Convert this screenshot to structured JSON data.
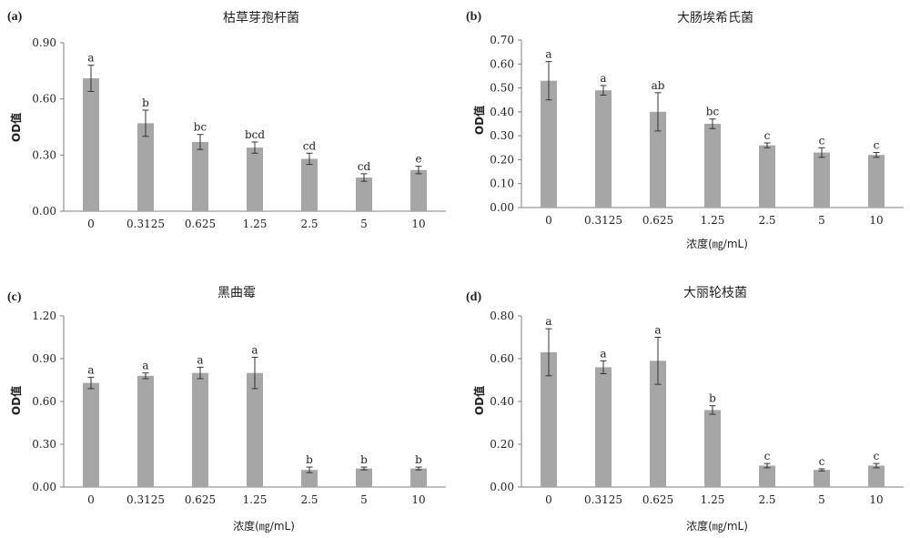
{
  "chart_data": [
    {
      "type": "bar",
      "panel": "(a)",
      "title": "枯草芽孢杆菌",
      "ylabel": "OD值",
      "xlabel": "",
      "categories": [
        "0",
        "0.3125",
        "0.625",
        "1.25",
        "2.5",
        "5",
        "10"
      ],
      "values": [
        0.71,
        0.47,
        0.37,
        0.34,
        0.28,
        0.18,
        0.22
      ],
      "errors": [
        0.07,
        0.07,
        0.04,
        0.03,
        0.03,
        0.02,
        0.02
      ],
      "labels": [
        "a",
        "b",
        "bc",
        "bcd",
        "cd",
        "cd",
        "e"
      ],
      "ylim": [
        0,
        0.9
      ],
      "yticks": [
        "0.00",
        "0.30",
        "0.60",
        "0.90"
      ],
      "bar_color": "#a6a6a6",
      "grid": false
    },
    {
      "type": "bar",
      "panel": "(b)",
      "title": "大肠埃希氏菌",
      "ylabel": "OD值",
      "xlabel": "浓度(㎎/mL)",
      "categories": [
        "0",
        "0.3125",
        "0.625",
        "1.25",
        "2.5",
        "5",
        "10"
      ],
      "values": [
        0.53,
        0.49,
        0.4,
        0.35,
        0.26,
        0.23,
        0.22
      ],
      "errors": [
        0.08,
        0.02,
        0.08,
        0.02,
        0.01,
        0.02,
        0.01
      ],
      "labels": [
        "a",
        "a",
        "ab",
        "bc",
        "c",
        "c",
        "c"
      ],
      "ylim": [
        0,
        0.7
      ],
      "yticks": [
        "0.00",
        "0.10",
        "0.20",
        "0.30",
        "0.40",
        "0.50",
        "0.60",
        "0.70"
      ],
      "bar_color": "#a6a6a6",
      "grid": false
    },
    {
      "type": "bar",
      "panel": "(c)",
      "title": "黑曲霉",
      "ylabel": "OD值",
      "xlabel": "浓度(㎎/mL)",
      "categories": [
        "0",
        "0.3125",
        "0.625",
        "1.25",
        "2.5",
        "5",
        "10"
      ],
      "values": [
        0.73,
        0.78,
        0.8,
        0.8,
        0.12,
        0.13,
        0.13
      ],
      "errors": [
        0.04,
        0.02,
        0.04,
        0.11,
        0.02,
        0.01,
        0.01
      ],
      "labels": [
        "a",
        "a",
        "a",
        "a",
        "b",
        "b",
        "b"
      ],
      "ylim": [
        0,
        1.2
      ],
      "yticks": [
        "0.00",
        "0.30",
        "0.60",
        "0.90",
        "1.20"
      ],
      "bar_color": "#a6a6a6",
      "grid": false
    },
    {
      "type": "bar",
      "panel": "(d)",
      "title": "大丽轮枝菌",
      "ylabel": "OD值",
      "xlabel": "浓度(㎎/mL)",
      "categories": [
        "0",
        "0.3125",
        "0.625",
        "1.25",
        "2.5",
        "5",
        "10"
      ],
      "values": [
        0.63,
        0.56,
        0.59,
        0.36,
        0.1,
        0.08,
        0.1
      ],
      "errors": [
        0.11,
        0.03,
        0.11,
        0.02,
        0.01,
        0.005,
        0.01
      ],
      "labels": [
        "a",
        "a",
        "a",
        "b",
        "c",
        "c",
        "c"
      ],
      "ylim": [
        0,
        0.8
      ],
      "yticks": [
        "0.00",
        "0.20",
        "0.40",
        "0.60",
        "0.80"
      ],
      "bar_color": "#a6a6a6",
      "grid": false
    }
  ]
}
